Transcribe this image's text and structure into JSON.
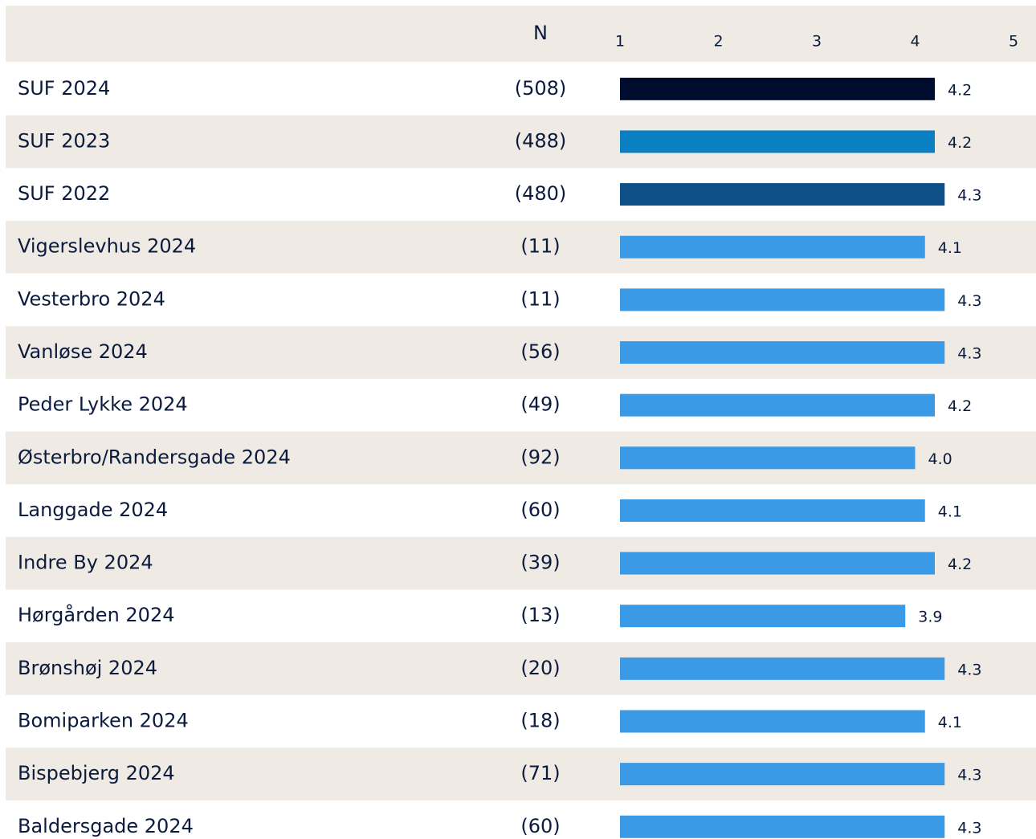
{
  "chart_data": {
    "type": "bar",
    "orientation": "horizontal",
    "n_header": "N",
    "categories": [
      "SUF 2024",
      "SUF 2023",
      "SUF 2022",
      "Vigerslevhus 2024",
      "Vesterbro 2024",
      "Vanløse 2024",
      "Peder Lykke 2024",
      "Østerbro/Randersgade 2024",
      "Langgade 2024",
      "Indre By 2024",
      "Hørgården 2024",
      "Brønshøj 2024",
      "Bomiparken 2024",
      "Bispebjerg 2024",
      "Baldersgade 2024"
    ],
    "n": [
      "(508)",
      "(488)",
      "(480)",
      "(11)",
      "(11)",
      "(56)",
      "(49)",
      "(92)",
      "(60)",
      "(39)",
      "(13)",
      "(20)",
      "(18)",
      "(71)",
      "(60)"
    ],
    "values": [
      4.2,
      4.2,
      4.3,
      4.1,
      4.3,
      4.3,
      4.2,
      4.0,
      4.1,
      4.2,
      3.9,
      4.3,
      4.1,
      4.3,
      4.3
    ],
    "value_labels": [
      "4.2",
      "4.2",
      "4.3",
      "4.1",
      "4.3",
      "4.3",
      "4.2",
      "4.0",
      "4.1",
      "4.2",
      "3.9",
      "4.3",
      "4.1",
      "4.3",
      "4.3"
    ],
    "colors": [
      "#000c2e",
      "#0a7fc2",
      "#0d4f86",
      "#3b9ae6",
      "#3b9ae6",
      "#3b9ae6",
      "#3b9ae6",
      "#3b9ae6",
      "#3b9ae6",
      "#3b9ae6",
      "#3b9ae6",
      "#3b9ae6",
      "#3b9ae6",
      "#3b9ae6",
      "#3b9ae6"
    ],
    "xlim": [
      1,
      5
    ],
    "xticks": [
      1,
      2,
      3,
      4,
      5
    ]
  }
}
